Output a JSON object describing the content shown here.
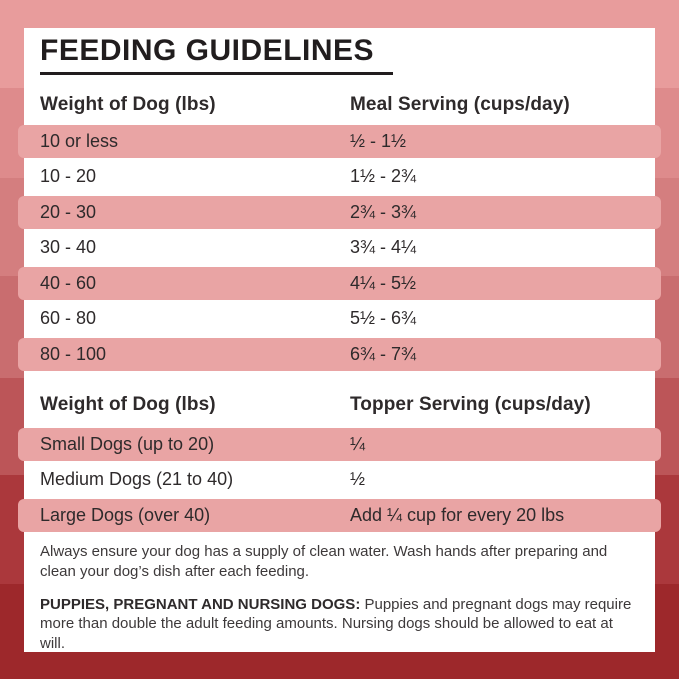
{
  "page": {
    "title": "FEEDING GUIDELINES"
  },
  "meal_table": {
    "columns": {
      "weight": "Weight of Dog (lbs)",
      "serving": "Meal Serving (cups/day)"
    },
    "rows": [
      {
        "weight": "10 or less",
        "serving": "½ - 1½"
      },
      {
        "weight": "10 - 20",
        "serving": "1½ - 2¾"
      },
      {
        "weight": "20 - 30",
        "serving": "2¾ - 3¾"
      },
      {
        "weight": "30 - 40",
        "serving": "3¾ - 4¼"
      },
      {
        "weight": "40 - 60",
        "serving": "4¼ - 5½"
      },
      {
        "weight": "60 - 80",
        "serving": "5½ - 6¾"
      },
      {
        "weight": "80 - 100",
        "serving": "6¾ - 7¾"
      }
    ]
  },
  "topper_table": {
    "columns": {
      "weight": "Weight of Dog (lbs)",
      "serving": "Topper Serving (cups/day)"
    },
    "rows": [
      {
        "weight": "Small Dogs (up to 20)",
        "serving": "¼"
      },
      {
        "weight": "Medium Dogs (21 to 40)",
        "serving": "½"
      },
      {
        "weight": "Large Dogs (over 40)",
        "serving": "Add ¼ cup for every 20 lbs"
      }
    ]
  },
  "notes": {
    "water": "Always ensure your dog has a supply of clean water. Wash hands after preparing and clean your dog’s dish after each feeding.",
    "puppies_label": "PUPPIES, PREGNANT AND NURSING DOGS:",
    "puppies_text": " Puppies and pregnant dogs may require more than double the adult feeding amounts. Nursing dogs should be allowed to eat at will."
  },
  "colors": {
    "row_highlight": "#e9a4a4",
    "card_background": "#ffffff",
    "title_text": "#211d1e",
    "table_text": "#2e2a2b",
    "notes_text": "#3d393a",
    "background_bands": [
      "#e89c9c",
      "#de8b8c",
      "#d47e7f",
      "#c96d6f",
      "#bc5558",
      "#ab383c",
      "#9d282b"
    ]
  }
}
